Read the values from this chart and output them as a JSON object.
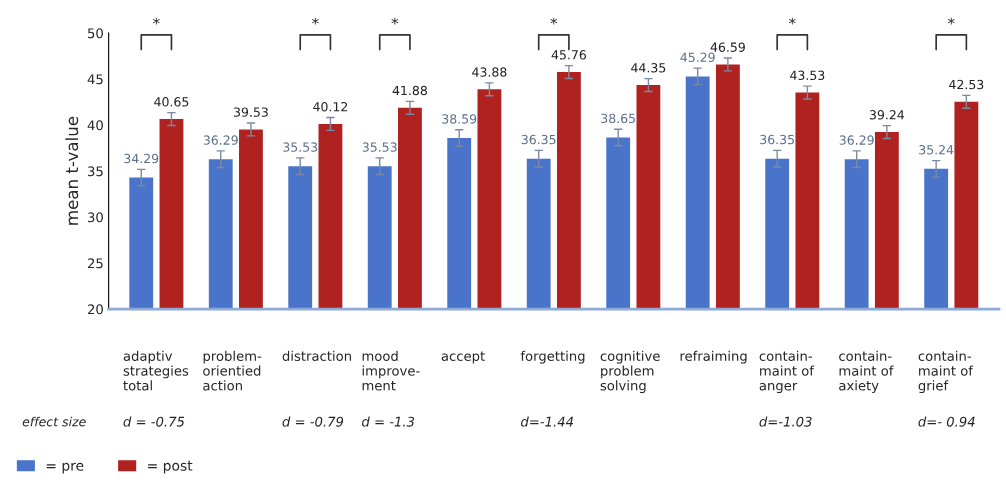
{
  "chart_data": {
    "type": "bar",
    "ylabel": "mean t-value",
    "categories": [
      "adaptiv\nstrategies\ntotal",
      "problem-\norientied\naction",
      "distraction",
      "mood\nimprove-\nment",
      "accept",
      "forgetting",
      "cognitive\nproblem\nsolving",
      "refraiming",
      "contain-\nmaint of\nanger",
      "contain-\nmaint of\naxiety",
      "contain-\nmaint of\ngrief"
    ],
    "series": [
      {
        "name": "= pre",
        "color": "#4a74c9",
        "values": [
          34.29,
          36.29,
          35.53,
          35.53,
          38.59,
          36.35,
          38.65,
          45.29,
          36.35,
          36.29,
          35.24
        ],
        "errors": [
          0.9,
          0.9,
          0.9,
          0.9,
          0.9,
          0.9,
          0.9,
          0.9,
          0.9,
          0.9,
          0.9
        ]
      },
      {
        "name": "= post",
        "color": "#b02220",
        "values": [
          40.65,
          39.53,
          40.12,
          41.88,
          43.88,
          45.76,
          44.35,
          46.59,
          43.53,
          39.24,
          42.53
        ],
        "errors": [
          0.7,
          0.7,
          0.7,
          0.7,
          0.7,
          0.7,
          0.7,
          0.7,
          0.7,
          0.7,
          0.7
        ]
      }
    ],
    "data_labels": true,
    "ylim": [
      20,
      50
    ],
    "yticks": [
      20,
      25,
      30,
      35,
      40,
      45,
      50
    ],
    "grid": false,
    "legend": "bottom left",
    "annotations": [
      "effect size",
      "d = -0.75",
      "d = -0.79",
      "d = -1.3",
      "d=-1.44",
      "d=-1.03",
      "d=- 0.94",
      "*",
      "*",
      "*",
      "*",
      "*",
      "*"
    ]
  }
}
